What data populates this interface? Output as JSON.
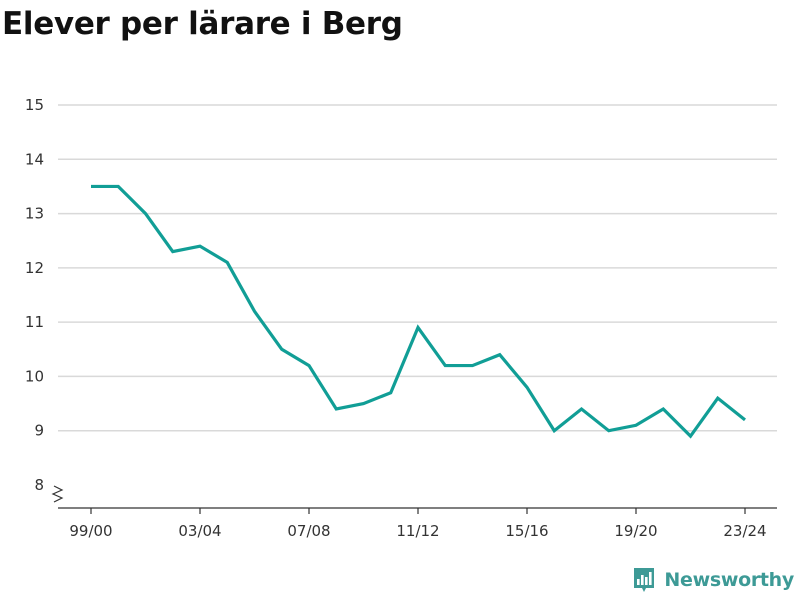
{
  "chart_data": {
    "type": "line",
    "title": "Elever per lärare i Berg",
    "xlabel": "",
    "ylabel": "",
    "ylim": [
      8,
      15
    ],
    "y_ticks": [
      8,
      9,
      10,
      11,
      12,
      13,
      14,
      15
    ],
    "y_axis_break": true,
    "x_tick_labels": [
      "99/00",
      "03/04",
      "07/08",
      "11/12",
      "15/16",
      "19/20",
      "23/24"
    ],
    "grid": true,
    "series": [
      {
        "color": "#119e96",
        "x": [
          "99/00",
          "00/01",
          "01/02",
          "02/03",
          "03/04",
          "04/05",
          "05/06",
          "06/07",
          "07/08",
          "08/09",
          "09/10",
          "10/11",
          "11/12",
          "12/13",
          "13/14",
          "14/15",
          "15/16",
          "16/17",
          "17/18",
          "18/19",
          "19/20",
          "20/21",
          "21/22",
          "22/23",
          "23/24"
        ],
        "values": [
          13.5,
          13.5,
          13.0,
          12.3,
          12.4,
          12.1,
          11.2,
          10.5,
          10.2,
          9.4,
          9.5,
          9.7,
          10.9,
          10.2,
          10.2,
          10.4,
          9.8,
          9.0,
          9.4,
          9.0,
          9.1,
          9.4,
          8.9,
          9.6,
          9.2
        ]
      }
    ]
  },
  "brand": {
    "name": "Newsworthy",
    "icon": "newsworthy-logo-icon",
    "color": "#3d9a96"
  }
}
